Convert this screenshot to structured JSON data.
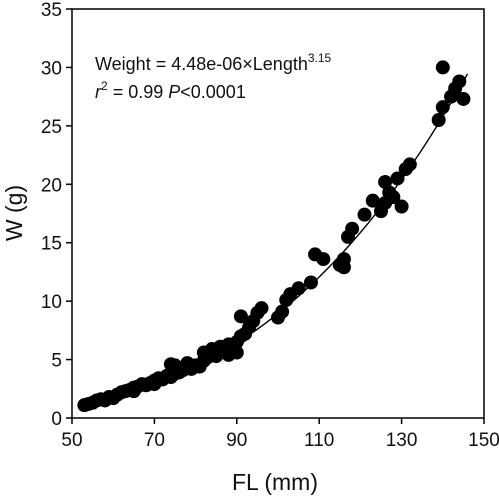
{
  "chart_data": {
    "type": "scatter",
    "title": "",
    "xlabel": "FL (mm)",
    "ylabel": "W (g)",
    "xlim": [
      50,
      150
    ],
    "ylim": [
      0,
      35
    ],
    "x_ticks": [
      50,
      70,
      90,
      110,
      130,
      150
    ],
    "y_ticks": [
      0,
      5,
      10,
      15,
      20,
      25,
      30,
      35
    ],
    "grid": false,
    "annotations": {
      "equation_prefix": "Weight = 4.48e-06×Length",
      "equation_exponent": "3.15",
      "r2_symbol": "r",
      "r2_sup": "2",
      "r2_value": " = 0.99 ",
      "p_symbol": "P",
      "p_value": "<0.0001"
    },
    "fit": {
      "a": 4.48e-06,
      "b": 3.15,
      "x_range": [
        52,
        146
      ]
    },
    "colors": {
      "points": "#000000",
      "line": "#000000"
    },
    "points": [
      [
        53,
        1.1
      ],
      [
        54,
        1.2
      ],
      [
        55,
        1.3
      ],
      [
        56,
        1.5
      ],
      [
        57,
        1.6
      ],
      [
        58,
        1.5
      ],
      [
        59,
        1.8
      ],
      [
        60,
        1.7
      ],
      [
        61,
        2.0
      ],
      [
        62,
        2.2
      ],
      [
        63,
        2.3
      ],
      [
        64,
        2.4
      ],
      [
        65,
        2.6
      ],
      [
        65,
        2.3
      ],
      [
        66,
        2.7
      ],
      [
        67,
        2.9
      ],
      [
        68,
        2.8
      ],
      [
        69,
        3.0
      ],
      [
        70,
        3.2
      ],
      [
        70,
        2.9
      ],
      [
        71,
        3.4
      ],
      [
        72,
        3.3
      ],
      [
        73,
        3.6
      ],
      [
        74,
        3.5
      ],
      [
        74,
        4.6
      ],
      [
        75,
        3.8
      ],
      [
        75,
        4.5
      ],
      [
        76,
        3.9
      ],
      [
        77,
        4.1
      ],
      [
        78,
        4.3
      ],
      [
        78,
        4.7
      ],
      [
        79,
        4.2
      ],
      [
        80,
        4.5
      ],
      [
        81,
        4.4
      ],
      [
        82,
        4.9
      ],
      [
        82,
        5.6
      ],
      [
        83,
        5.2
      ],
      [
        84,
        5.5
      ],
      [
        84,
        5.9
      ],
      [
        85,
        5.3
      ],
      [
        86,
        5.7
      ],
      [
        86,
        6.1
      ],
      [
        87,
        5.9
      ],
      [
        88,
        5.4
      ],
      [
        88,
        6.3
      ],
      [
        89,
        6.0
      ],
      [
        90,
        6.5
      ],
      [
        90,
        5.6
      ],
      [
        91,
        7.0
      ],
      [
        91,
        8.7
      ],
      [
        92,
        7.2
      ],
      [
        93,
        7.8
      ],
      [
        94,
        8.3
      ],
      [
        95,
        9.0
      ],
      [
        96,
        9.4
      ],
      [
        100,
        8.6
      ],
      [
        101,
        9.1
      ],
      [
        102,
        10.1
      ],
      [
        103,
        10.6
      ],
      [
        105,
        11.1
      ],
      [
        108,
        11.6
      ],
      [
        109,
        14.0
      ],
      [
        111,
        13.6
      ],
      [
        115,
        13.1
      ],
      [
        116,
        12.9
      ],
      [
        116,
        13.6
      ],
      [
        117,
        15.5
      ],
      [
        118,
        16.2
      ],
      [
        121,
        17.4
      ],
      [
        123,
        18.6
      ],
      [
        125,
        17.7
      ],
      [
        126,
        18.4
      ],
      [
        126,
        20.2
      ],
      [
        127,
        19.3
      ],
      [
        128,
        18.9
      ],
      [
        129,
        20.5
      ],
      [
        130,
        18.1
      ],
      [
        131,
        21.3
      ],
      [
        132,
        21.7
      ],
      [
        139,
        25.5
      ],
      [
        140,
        26.6
      ],
      [
        140,
        30.0
      ],
      [
        142,
        27.5
      ],
      [
        143,
        28.2
      ],
      [
        144,
        28.8
      ],
      [
        145,
        27.3
      ]
    ]
  }
}
